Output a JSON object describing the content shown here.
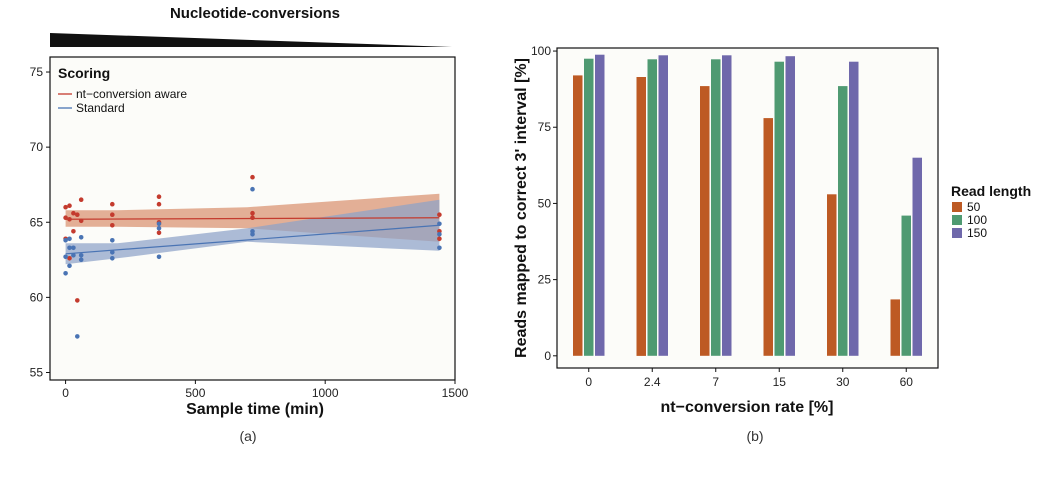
{
  "colors": {
    "aware": "#c43b2e",
    "standard": "#4a74b4",
    "aware_band": "#d9916f",
    "standard_band": "#8ea2c8",
    "panel_bg": "#fcfcf9",
    "bar_50": "#bd5a24",
    "bar_100": "#4f9a72",
    "bar_150": "#6f68ab"
  },
  "chart_data": [
    {
      "type": "scatter",
      "title": "Nucleotide-conversions",
      "caption": "(a)",
      "xlabel": "Sample time (min)",
      "ylabel": "",
      "xlim": [
        -60,
        1500
      ],
      "ylim": [
        54.5,
        76
      ],
      "x_ticks": [
        0,
        500,
        1000,
        1500
      ],
      "y_ticks": [
        55,
        60,
        65,
        70,
        75
      ],
      "legend": {
        "title": "Scoring",
        "position": "top-left",
        "entries": [
          "nt−conversion aware",
          "Standard"
        ]
      },
      "series": [
        {
          "name": "nt−conversion aware",
          "points": [
            [
              0,
              66.0
            ],
            [
              0,
              65.3
            ],
            [
              0,
              63.9
            ],
            [
              15,
              66.1
            ],
            [
              15,
              65.2
            ],
            [
              15,
              62.6
            ],
            [
              30,
              65.6
            ],
            [
              30,
              64.4
            ],
            [
              45,
              65.5
            ],
            [
              45,
              59.8
            ],
            [
              60,
              66.5
            ],
            [
              60,
              65.1
            ],
            [
              180,
              66.2
            ],
            [
              180,
              65.5
            ],
            [
              180,
              64.8
            ],
            [
              360,
              66.7
            ],
            [
              360,
              66.2
            ],
            [
              360,
              65.0
            ],
            [
              360,
              64.3
            ],
            [
              720,
              68.0
            ],
            [
              720,
              65.6
            ],
            [
              720,
              65.3
            ],
            [
              1440,
              65.5
            ],
            [
              1440,
              64.4
            ],
            [
              1440,
              63.9
            ]
          ],
          "fit": {
            "x": [
              0,
              1440
            ],
            "y": [
              65.2,
              65.3
            ]
          },
          "band_upper": [
            65.8,
            65.8,
            66.0,
            66.9
          ],
          "band_lower": [
            64.7,
            64.7,
            64.6,
            63.7
          ]
        },
        {
          "name": "Standard",
          "points": [
            [
              0,
              63.8
            ],
            [
              0,
              62.7
            ],
            [
              0,
              61.6
            ],
            [
              15,
              63.9
            ],
            [
              15,
              63.3
            ],
            [
              15,
              62.1
            ],
            [
              30,
              63.3
            ],
            [
              30,
              62.8
            ],
            [
              45,
              57.4
            ],
            [
              60,
              64.0
            ],
            [
              60,
              62.8
            ],
            [
              60,
              62.5
            ],
            [
              180,
              63.8
            ],
            [
              180,
              63.0
            ],
            [
              180,
              62.6
            ],
            [
              360,
              64.9
            ],
            [
              360,
              64.6
            ],
            [
              360,
              62.7
            ],
            [
              720,
              67.2
            ],
            [
              720,
              64.4
            ],
            [
              720,
              64.2
            ],
            [
              1440,
              64.9
            ],
            [
              1440,
              64.2
            ],
            [
              1440,
              63.3
            ]
          ],
          "fit": {
            "x": [
              0,
              1440
            ],
            "y": [
              62.9,
              64.8
            ]
          },
          "band_upper": [
            63.6,
            63.6,
            64.6,
            66.5
          ],
          "band_lower": [
            62.2,
            62.6,
            63.7,
            63.1
          ]
        }
      ]
    },
    {
      "type": "bar",
      "caption": "(b)",
      "xlabel": "nt−conversion rate [%]",
      "ylabel": "Reads mapped to correct 3' interval [%]",
      "ylim": [
        -4,
        101
      ],
      "y_ticks": [
        0,
        25,
        50,
        75,
        100
      ],
      "categories": [
        "0",
        "2.4",
        "7",
        "15",
        "30",
        "60"
      ],
      "legend": {
        "title": "Read length",
        "position": "right"
      },
      "series": [
        {
          "name": "50",
          "values": [
            92,
            91.5,
            88.5,
            78,
            53,
            18.5
          ]
        },
        {
          "name": "100",
          "values": [
            97.5,
            97.3,
            97.3,
            96.5,
            88.5,
            46
          ]
        },
        {
          "name": "150",
          "values": [
            98.8,
            98.6,
            98.6,
            98.3,
            96.5,
            65
          ]
        }
      ]
    }
  ]
}
